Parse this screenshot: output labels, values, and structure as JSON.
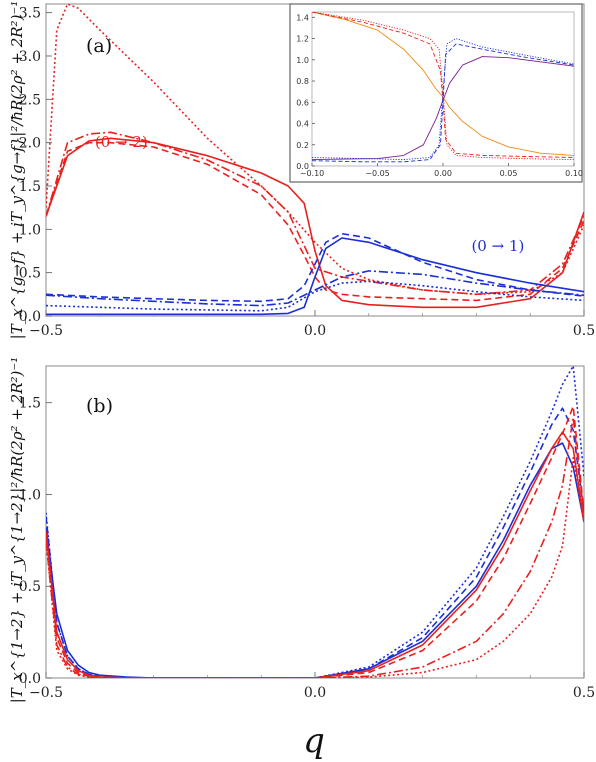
{
  "figure": {
    "xlabel": "q",
    "colors": {
      "red": "#e8211f",
      "blue": "#1c2fd6",
      "orange": "#ee8a17",
      "purple": "#7a1f8f"
    }
  },
  "chart_data": [
    {
      "panel": "a",
      "label": "(a)",
      "type": "line",
      "ylabel": "|T_x^{g→f} + iT_y^{g→f}|²/ħR(2ρ² + 2R²)⁻¹",
      "xlim": [
        -0.5,
        0.5
      ],
      "ylim": [
        0,
        3.6
      ],
      "xticks": [
        "-0.5",
        "0.0",
        "0.5"
      ],
      "yticks": [
        "0.0",
        "0.5",
        "1.0",
        "1.5",
        "2.0",
        "2.5",
        "3.0",
        "3.5"
      ],
      "annotations": [
        {
          "text": "(0 → 2)",
          "color": "red",
          "x": -0.36,
          "y": 1.95
        },
        {
          "text": "(0 → 1)",
          "color": "blue",
          "x": 0.34,
          "y": 0.75
        }
      ],
      "series": [
        {
          "color": "red",
          "style": "solid",
          "x": [
            -0.5,
            -0.46,
            -0.42,
            -0.38,
            -0.3,
            -0.2,
            -0.1,
            -0.05,
            -0.02,
            0.0,
            0.02,
            0.05,
            0.1,
            0.2,
            0.3,
            0.4,
            0.46,
            0.5
          ],
          "y": [
            1.15,
            1.85,
            2.02,
            2.05,
            2.0,
            1.85,
            1.65,
            1.5,
            1.3,
            0.75,
            0.35,
            0.18,
            0.13,
            0.1,
            0.1,
            0.2,
            0.5,
            1.2
          ]
        },
        {
          "color": "red",
          "style": "dashed",
          "x": [
            -0.5,
            -0.46,
            -0.42,
            -0.38,
            -0.3,
            -0.2,
            -0.1,
            -0.05,
            -0.02,
            0.0,
            0.02,
            0.05,
            0.1,
            0.2,
            0.3,
            0.4,
            0.46,
            0.5
          ],
          "y": [
            1.15,
            1.9,
            2.0,
            2.0,
            1.95,
            1.75,
            1.4,
            1.05,
            0.7,
            0.45,
            0.3,
            0.25,
            0.22,
            0.2,
            0.18,
            0.25,
            0.55,
            1.1
          ]
        },
        {
          "color": "red",
          "style": "dashdot",
          "x": [
            -0.5,
            -0.46,
            -0.42,
            -0.38,
            -0.3,
            -0.2,
            -0.1,
            -0.05,
            0.0,
            0.05,
            0.1,
            0.2,
            0.3,
            0.4,
            0.46,
            0.5
          ],
          "y": [
            1.15,
            2.0,
            2.1,
            2.12,
            2.0,
            1.8,
            1.5,
            1.2,
            0.55,
            0.45,
            0.4,
            0.3,
            0.25,
            0.3,
            0.6,
            1.15
          ]
        },
        {
          "color": "red",
          "style": "dotted",
          "x": [
            -0.5,
            -0.48,
            -0.46,
            -0.44,
            -0.4,
            -0.3,
            -0.2,
            -0.1,
            -0.05,
            0.0,
            0.05,
            0.1,
            0.2,
            0.3,
            0.4,
            0.46,
            0.5
          ],
          "y": [
            1.25,
            3.3,
            3.6,
            3.55,
            3.3,
            2.7,
            2.05,
            1.5,
            1.2,
            0.85,
            0.55,
            0.42,
            0.3,
            0.25,
            0.28,
            0.5,
            1.05
          ]
        },
        {
          "color": "blue",
          "style": "solid",
          "x": [
            -0.5,
            -0.4,
            -0.3,
            -0.2,
            -0.1,
            -0.05,
            -0.02,
            0.0,
            0.02,
            0.05,
            0.1,
            0.2,
            0.3,
            0.4,
            0.5
          ],
          "y": [
            0.02,
            0.02,
            0.02,
            0.02,
            0.02,
            0.03,
            0.1,
            0.45,
            0.78,
            0.9,
            0.85,
            0.65,
            0.5,
            0.38,
            0.28
          ]
        },
        {
          "color": "blue",
          "style": "dashed",
          "x": [
            -0.5,
            -0.4,
            -0.3,
            -0.2,
            -0.1,
            -0.05,
            -0.02,
            0.0,
            0.02,
            0.05,
            0.1,
            0.2,
            0.3,
            0.4,
            0.5
          ],
          "y": [
            0.25,
            0.22,
            0.2,
            0.18,
            0.17,
            0.2,
            0.35,
            0.6,
            0.85,
            0.95,
            0.9,
            0.62,
            0.42,
            0.3,
            0.23
          ]
        },
        {
          "color": "blue",
          "style": "dashdot",
          "x": [
            -0.5,
            -0.4,
            -0.3,
            -0.2,
            -0.1,
            -0.05,
            0.0,
            0.05,
            0.1,
            0.2,
            0.3,
            0.4,
            0.5
          ],
          "y": [
            0.24,
            0.2,
            0.17,
            0.14,
            0.12,
            0.15,
            0.3,
            0.45,
            0.52,
            0.48,
            0.38,
            0.3,
            0.24
          ]
        },
        {
          "color": "blue",
          "style": "dotted",
          "x": [
            -0.5,
            -0.4,
            -0.3,
            -0.2,
            -0.1,
            -0.05,
            0.0,
            0.05,
            0.1,
            0.2,
            0.3,
            0.4,
            0.5
          ],
          "y": [
            0.12,
            0.1,
            0.08,
            0.07,
            0.06,
            0.1,
            0.28,
            0.38,
            0.4,
            0.35,
            0.28,
            0.22,
            0.18
          ]
        }
      ]
    },
    {
      "panel": "a-inset",
      "type": "line",
      "xlim": [
        -0.1,
        0.1
      ],
      "ylim": [
        0,
        1.45
      ],
      "xticks": [
        "-0.10",
        "-0.05",
        "0.00",
        "0.05",
        "0.10"
      ],
      "yticks": [
        "0.0",
        "0.2",
        "0.4",
        "0.6",
        "0.8",
        "1.0",
        "1.2",
        "1.4"
      ],
      "series": [
        {
          "color": "orange",
          "style": "solid",
          "x": [
            -0.1,
            -0.075,
            -0.05,
            -0.03,
            -0.015,
            -0.005,
            0.0,
            0.005,
            0.015,
            0.03,
            0.05,
            0.075,
            0.1
          ],
          "y": [
            1.45,
            1.38,
            1.28,
            1.1,
            0.9,
            0.72,
            0.65,
            0.55,
            0.42,
            0.28,
            0.18,
            0.12,
            0.1
          ]
        },
        {
          "color": "purple",
          "style": "solid",
          "x": [
            -0.1,
            -0.05,
            -0.03,
            -0.015,
            -0.005,
            0.0,
            0.005,
            0.015,
            0.03,
            0.05,
            0.075,
            0.1
          ],
          "y": [
            0.06,
            0.07,
            0.1,
            0.2,
            0.45,
            0.62,
            0.78,
            0.95,
            1.03,
            1.02,
            0.98,
            0.94
          ]
        },
        {
          "color": "red",
          "style": "dashed",
          "x": [
            -0.1,
            -0.06,
            -0.03,
            -0.01,
            -0.002,
            0.0,
            0.002,
            0.01,
            0.03,
            0.06,
            0.1
          ],
          "y": [
            1.45,
            1.35,
            1.25,
            1.15,
            0.9,
            0.6,
            0.25,
            0.12,
            0.1,
            0.09,
            0.08
          ]
        },
        {
          "color": "red",
          "style": "dotted",
          "x": [
            -0.1,
            -0.06,
            -0.03,
            -0.01,
            -0.003,
            0.0,
            0.003,
            0.01,
            0.03,
            0.06,
            0.1
          ],
          "y": [
            1.45,
            1.37,
            1.28,
            1.2,
            1.1,
            0.7,
            0.2,
            0.1,
            0.08,
            0.07,
            0.06
          ]
        },
        {
          "color": "blue",
          "style": "dotted",
          "x": [
            -0.1,
            -0.06,
            -0.03,
            -0.01,
            -0.003,
            0.0,
            0.003,
            0.01,
            0.03,
            0.06,
            0.1
          ],
          "y": [
            0.08,
            0.07,
            0.06,
            0.08,
            0.2,
            0.7,
            1.15,
            1.2,
            1.12,
            1.05,
            0.96
          ]
        },
        {
          "color": "blue",
          "style": "dashed",
          "x": [
            -0.1,
            -0.06,
            -0.03,
            -0.01,
            -0.002,
            0.0,
            0.002,
            0.01,
            0.03,
            0.06,
            0.1
          ],
          "y": [
            0.05,
            0.04,
            0.04,
            0.06,
            0.2,
            0.6,
            1.05,
            1.15,
            1.1,
            1.03,
            0.95
          ]
        }
      ]
    },
    {
      "panel": "b",
      "label": "(b)",
      "type": "line",
      "ylabel": "|T_x^{1→2} + iT_y^{1→2}|²/ħR(2ρ² + 2R²)⁻¹",
      "xlim": [
        -0.5,
        0.5
      ],
      "ylim": [
        0,
        1.7
      ],
      "xticks": [
        "-0.5",
        "0.0",
        "0.5"
      ],
      "yticks": [
        "0.0",
        "0.5",
        "1.0",
        "1.5"
      ],
      "series": [
        {
          "color": "blue",
          "style": "solid",
          "x": [
            -0.5,
            -0.48,
            -0.46,
            -0.44,
            -0.42,
            -0.4,
            -0.35,
            -0.3,
            0.0,
            0.1,
            0.2,
            0.3,
            0.35,
            0.4,
            0.44,
            0.46,
            0.48,
            0.5
          ],
          "y": [
            0.82,
            0.35,
            0.15,
            0.07,
            0.03,
            0.015,
            0.005,
            0.0,
            0.0,
            0.05,
            0.2,
            0.5,
            0.75,
            1.05,
            1.25,
            1.28,
            1.15,
            0.85
          ]
        },
        {
          "color": "blue",
          "style": "dotted",
          "x": [
            -0.5,
            -0.48,
            -0.46,
            -0.44,
            -0.42,
            -0.4,
            -0.35,
            0.0,
            0.1,
            0.2,
            0.3,
            0.35,
            0.4,
            0.44,
            0.46,
            0.48,
            0.5
          ],
          "y": [
            0.9,
            0.3,
            0.12,
            0.05,
            0.02,
            0.01,
            0.0,
            0.0,
            0.06,
            0.25,
            0.6,
            0.88,
            1.18,
            1.45,
            1.6,
            1.7,
            1.1
          ]
        },
        {
          "color": "blue",
          "style": "dashed",
          "x": [
            -0.5,
            -0.48,
            -0.46,
            -0.44,
            -0.42,
            -0.35,
            0.0,
            0.1,
            0.2,
            0.3,
            0.35,
            0.4,
            0.44,
            0.46,
            0.48,
            0.5
          ],
          "y": [
            0.88,
            0.3,
            0.12,
            0.05,
            0.02,
            0.0,
            0.0,
            0.05,
            0.22,
            0.55,
            0.82,
            1.12,
            1.38,
            1.47,
            1.35,
            0.9
          ]
        },
        {
          "color": "red",
          "style": "solid",
          "x": [
            -0.5,
            -0.48,
            -0.46,
            -0.44,
            -0.42,
            -0.4,
            -0.35,
            0.0,
            0.1,
            0.2,
            0.3,
            0.35,
            0.4,
            0.44,
            0.46,
            0.48,
            0.5
          ],
          "y": [
            0.8,
            0.25,
            0.1,
            0.04,
            0.015,
            0.005,
            0.0,
            0.0,
            0.04,
            0.18,
            0.48,
            0.72,
            1.02,
            1.25,
            1.34,
            1.25,
            0.85
          ]
        },
        {
          "color": "red",
          "style": "dashed",
          "x": [
            -0.5,
            -0.48,
            -0.46,
            -0.44,
            -0.42,
            -0.35,
            0.0,
            0.1,
            0.2,
            0.3,
            0.35,
            0.4,
            0.44,
            0.46,
            0.48,
            0.5
          ],
          "y": [
            0.8,
            0.22,
            0.08,
            0.03,
            0.01,
            0.0,
            0.0,
            0.03,
            0.15,
            0.42,
            0.65,
            0.95,
            1.2,
            1.33,
            1.48,
            0.9
          ]
        },
        {
          "color": "red",
          "style": "dashdot",
          "x": [
            -0.5,
            -0.48,
            -0.46,
            -0.44,
            -0.42,
            -0.35,
            0.0,
            0.1,
            0.2,
            0.3,
            0.35,
            0.4,
            0.44,
            0.46,
            0.48,
            0.5
          ],
          "y": [
            0.75,
            0.18,
            0.06,
            0.02,
            0.005,
            0.0,
            0.0,
            0.01,
            0.06,
            0.2,
            0.35,
            0.58,
            0.85,
            1.05,
            1.42,
            0.88
          ]
        },
        {
          "color": "red",
          "style": "dotted",
          "x": [
            -0.5,
            -0.48,
            -0.46,
            -0.44,
            -0.42,
            -0.35,
            0.0,
            0.1,
            0.2,
            0.3,
            0.35,
            0.4,
            0.44,
            0.46,
            0.48,
            0.5
          ],
          "y": [
            0.75,
            0.15,
            0.05,
            0.015,
            0.005,
            0.0,
            0.0,
            0.005,
            0.03,
            0.1,
            0.2,
            0.35,
            0.55,
            0.72,
            1.2,
            0.85
          ]
        }
      ]
    }
  ]
}
